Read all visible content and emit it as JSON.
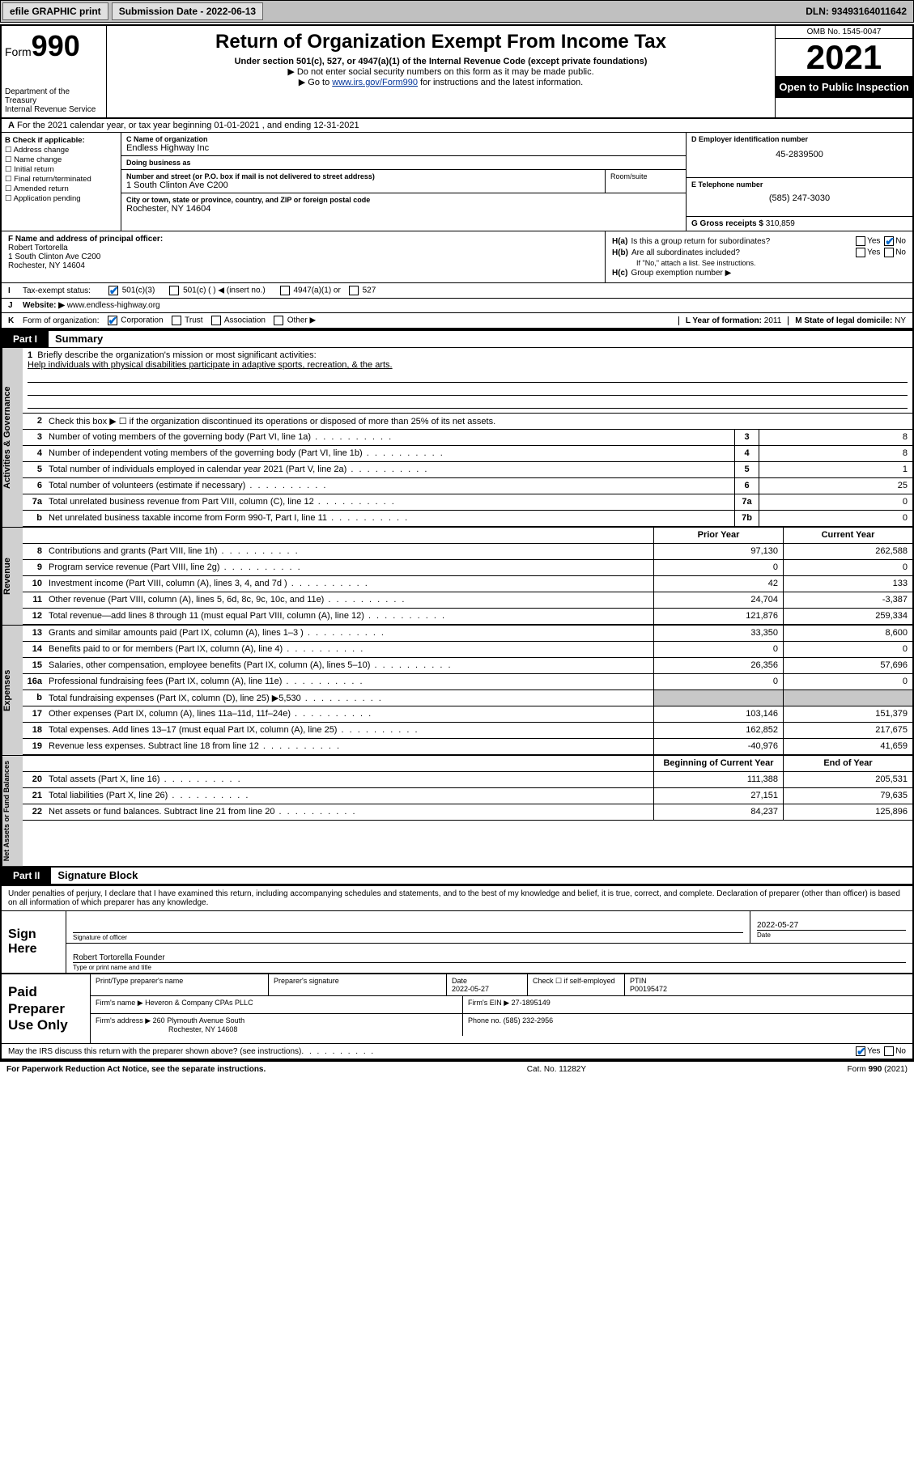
{
  "topbar": {
    "efile": "efile GRAPHIC print",
    "submission_label": "Submission Date - 2022-06-13",
    "dln": "DLN: 93493164011642"
  },
  "header": {
    "form_prefix": "Form",
    "form_number": "990",
    "dept": "Department of the Treasury",
    "irs": "Internal Revenue Service",
    "title": "Return of Organization Exempt From Income Tax",
    "subtitle": "Under section 501(c), 527, or 4947(a)(1) of the Internal Revenue Code (except private foundations)",
    "note1": "▶ Do not enter social security numbers on this form as it may be made public.",
    "note2_pre": "▶ Go to ",
    "note2_link": "www.irs.gov/Form990",
    "note2_post": " for instructions and the latest information.",
    "omb": "OMB No. 1545-0047",
    "year": "2021",
    "open_public": "Open to Public Inspection"
  },
  "row_a": "For the 2021 calendar year, or tax year beginning 01-01-2021  , and ending 12-31-2021",
  "section_b": {
    "title": "B Check if applicable:",
    "opts": [
      "Address change",
      "Name change",
      "Initial return",
      "Final return/terminated",
      "Amended return",
      "Application pending"
    ]
  },
  "section_c": {
    "name_lbl": "C Name of organization",
    "name": "Endless Highway Inc",
    "dba_lbl": "Doing business as",
    "dba": "",
    "addr_lbl": "Number and street (or P.O. box if mail is not delivered to street address)",
    "addr": "1 South Clinton Ave C200",
    "room_lbl": "Room/suite",
    "city_lbl": "City or town, state or province, country, and ZIP or foreign postal code",
    "city": "Rochester, NY  14604"
  },
  "section_d": {
    "lbl": "D Employer identification number",
    "val": "45-2839500"
  },
  "section_e": {
    "lbl": "E Telephone number",
    "val": "(585) 247-3030"
  },
  "section_g": {
    "lbl": "G Gross receipts $",
    "val": "310,859"
  },
  "section_f": {
    "lbl": "F Name and address of principal officer:",
    "name": "Robert Tortorella",
    "addr1": "1 South Clinton Ave C200",
    "addr2": "Rochester, NY  14604"
  },
  "section_h": {
    "ha": "Is this a group return for subordinates?",
    "ha_yes": "Yes",
    "ha_no": "No",
    "hb": "Are all subordinates included?",
    "hb_note": "If \"No,\" attach a list. See instructions.",
    "hc": "Group exemption number ▶"
  },
  "section_i": {
    "lbl": "Tax-exempt status:",
    "opts": [
      "501(c)(3)",
      "501(c) (  ) ◀ (insert no.)",
      "4947(a)(1) or",
      "527"
    ]
  },
  "section_j": {
    "lbl": "Website: ▶",
    "val": "www.endless-highway.org"
  },
  "section_k": {
    "lbl": "Form of organization:",
    "opts": [
      "Corporation",
      "Trust",
      "Association",
      "Other ▶"
    ]
  },
  "section_l": {
    "lbl": "L Year of formation:",
    "val": "2011"
  },
  "section_m": {
    "lbl": "M State of legal domicile:",
    "val": "NY"
  },
  "part1": {
    "hdr": "Part I",
    "title": "Summary"
  },
  "mission": {
    "lbl": "Briefly describe the organization's mission or most significant activities:",
    "text": "Help individuals with physical disabilities participate in adaptive sports, recreation, & the arts."
  },
  "line2": "Check this box ▶ ☐ if the organization discontinued its operations or disposed of more than 25% of its net assets.",
  "gov_lines": [
    {
      "n": "3",
      "d": "Number of voting members of the governing body (Part VI, line 1a)",
      "box": "3",
      "v": "8"
    },
    {
      "n": "4",
      "d": "Number of independent voting members of the governing body (Part VI, line 1b)",
      "box": "4",
      "v": "8"
    },
    {
      "n": "5",
      "d": "Total number of individuals employed in calendar year 2021 (Part V, line 2a)",
      "box": "5",
      "v": "1"
    },
    {
      "n": "6",
      "d": "Total number of volunteers (estimate if necessary)",
      "box": "6",
      "v": "25"
    },
    {
      "n": "7a",
      "d": "Total unrelated business revenue from Part VIII, column (C), line 12",
      "box": "7a",
      "v": "0"
    },
    {
      "n": "b",
      "d": "Net unrelated business taxable income from Form 990-T, Part I, line 11",
      "box": "7b",
      "v": "0"
    }
  ],
  "col_hdr": {
    "prior": "Prior Year",
    "current": "Current Year"
  },
  "rev_lines": [
    {
      "n": "8",
      "d": "Contributions and grants (Part VIII, line 1h)",
      "p": "97,130",
      "c": "262,588"
    },
    {
      "n": "9",
      "d": "Program service revenue (Part VIII, line 2g)",
      "p": "0",
      "c": "0"
    },
    {
      "n": "10",
      "d": "Investment income (Part VIII, column (A), lines 3, 4, and 7d )",
      "p": "42",
      "c": "133"
    },
    {
      "n": "11",
      "d": "Other revenue (Part VIII, column (A), lines 5, 6d, 8c, 9c, 10c, and 11e)",
      "p": "24,704",
      "c": "-3,387"
    },
    {
      "n": "12",
      "d": "Total revenue—add lines 8 through 11 (must equal Part VIII, column (A), line 12)",
      "p": "121,876",
      "c": "259,334"
    }
  ],
  "exp_lines": [
    {
      "n": "13",
      "d": "Grants and similar amounts paid (Part IX, column (A), lines 1–3 )",
      "p": "33,350",
      "c": "8,600"
    },
    {
      "n": "14",
      "d": "Benefits paid to or for members (Part IX, column (A), line 4)",
      "p": "0",
      "c": "0"
    },
    {
      "n": "15",
      "d": "Salaries, other compensation, employee benefits (Part IX, column (A), lines 5–10)",
      "p": "26,356",
      "c": "57,696"
    },
    {
      "n": "16a",
      "d": "Professional fundraising fees (Part IX, column (A), line 11e)",
      "p": "0",
      "c": "0"
    },
    {
      "n": "b",
      "d": "Total fundraising expenses (Part IX, column (D), line 25) ▶5,530",
      "p": "",
      "c": "",
      "gray": true
    },
    {
      "n": "17",
      "d": "Other expenses (Part IX, column (A), lines 11a–11d, 11f–24e)",
      "p": "103,146",
      "c": "151,379"
    },
    {
      "n": "18",
      "d": "Total expenses. Add lines 13–17 (must equal Part IX, column (A), line 25)",
      "p": "162,852",
      "c": "217,675"
    },
    {
      "n": "19",
      "d": "Revenue less expenses. Subtract line 18 from line 12",
      "p": "-40,976",
      "c": "41,659"
    }
  ],
  "bal_hdr": {
    "begin": "Beginning of Current Year",
    "end": "End of Year"
  },
  "bal_lines": [
    {
      "n": "20",
      "d": "Total assets (Part X, line 16)",
      "p": "111,388",
      "c": "205,531"
    },
    {
      "n": "21",
      "d": "Total liabilities (Part X, line 26)",
      "p": "27,151",
      "c": "79,635"
    },
    {
      "n": "22",
      "d": "Net assets or fund balances. Subtract line 21 from line 20",
      "p": "84,237",
      "c": "125,896"
    }
  ],
  "vtabs": {
    "gov": "Activities & Governance",
    "rev": "Revenue",
    "exp": "Expenses",
    "bal": "Net Assets or Fund Balances"
  },
  "part2": {
    "hdr": "Part II",
    "title": "Signature Block"
  },
  "sig": {
    "perjury": "Under penalties of perjury, I declare that I have examined this return, including accompanying schedules and statements, and to the best of my knowledge and belief, it is true, correct, and complete. Declaration of preparer (other than officer) is based on all information of which preparer has any knowledge.",
    "sign_here": "Sign Here",
    "sig_officer": "Signature of officer",
    "date_lbl": "Date",
    "date": "2022-05-27",
    "name": "Robert Tortorella  Founder",
    "name_lbl": "Type or print name and title"
  },
  "paid": {
    "label": "Paid Preparer Use Only",
    "h1": "Print/Type preparer's name",
    "h2": "Preparer's signature",
    "h3": "Date",
    "date": "2022-05-27",
    "h4": "Check ☐ if self-employed",
    "h5": "PTIN",
    "ptin": "P00195472",
    "firm_lbl": "Firm's name    ▶",
    "firm": "Heveron & Company CPAs PLLC",
    "ein_lbl": "Firm's EIN ▶",
    "ein": "27-1895149",
    "addr_lbl": "Firm's address ▶",
    "addr1": "260 Plymouth Avenue South",
    "addr2": "Rochester, NY  14608",
    "phone_lbl": "Phone no.",
    "phone": "(585) 232-2956"
  },
  "discuss": {
    "q": "May the IRS discuss this return with the preparer shown above? (see instructions)",
    "yes": "Yes",
    "no": "No"
  },
  "footer": {
    "left": "For Paperwork Reduction Act Notice, see the separate instructions.",
    "mid": "Cat. No. 11282Y",
    "right": "Form 990 (2021)"
  }
}
